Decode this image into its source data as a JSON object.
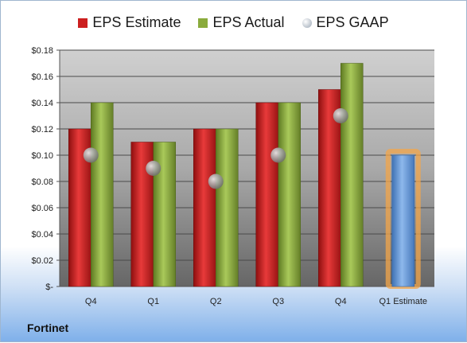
{
  "company": "Fortinet",
  "colors": {
    "estimate": "#cc1f1f",
    "actual": "#8aab3c",
    "gaap": "#b9c3cf",
    "future_estimate": "#6b9bd6",
    "future_glow": "#f3a54a",
    "plot_bg_top": "#d0d0d0",
    "plot_bg_bottom": "#666666"
  },
  "chart_data": {
    "type": "bar",
    "categories": [
      "Q4",
      "Q1",
      "Q2",
      "Q3",
      "Q4",
      "Q1 Estimate"
    ],
    "series": [
      {
        "name": "EPS Estimate",
        "values": [
          0.12,
          0.11,
          0.12,
          0.14,
          0.15,
          null
        ]
      },
      {
        "name": "EPS Actual",
        "values": [
          0.14,
          0.11,
          0.12,
          0.14,
          0.17,
          null
        ]
      },
      {
        "name": "EPS GAAP",
        "values": [
          0.1,
          0.09,
          0.08,
          0.1,
          0.13,
          null
        ]
      }
    ],
    "future_estimate": {
      "category": "Q1 Estimate",
      "value": 0.1
    },
    "ylim": [
      0,
      0.18
    ],
    "yticks": [
      0,
      0.02,
      0.04,
      0.06,
      0.08,
      0.1,
      0.12,
      0.14,
      0.16,
      0.18
    ],
    "ytick_labels": [
      "$-",
      "$0.02",
      "$0.04",
      "$0.06",
      "$0.08",
      "$0.10",
      "$0.12",
      "$0.14",
      "$0.16",
      "$0.18"
    ],
    "grid": true,
    "legend_position": "top"
  }
}
